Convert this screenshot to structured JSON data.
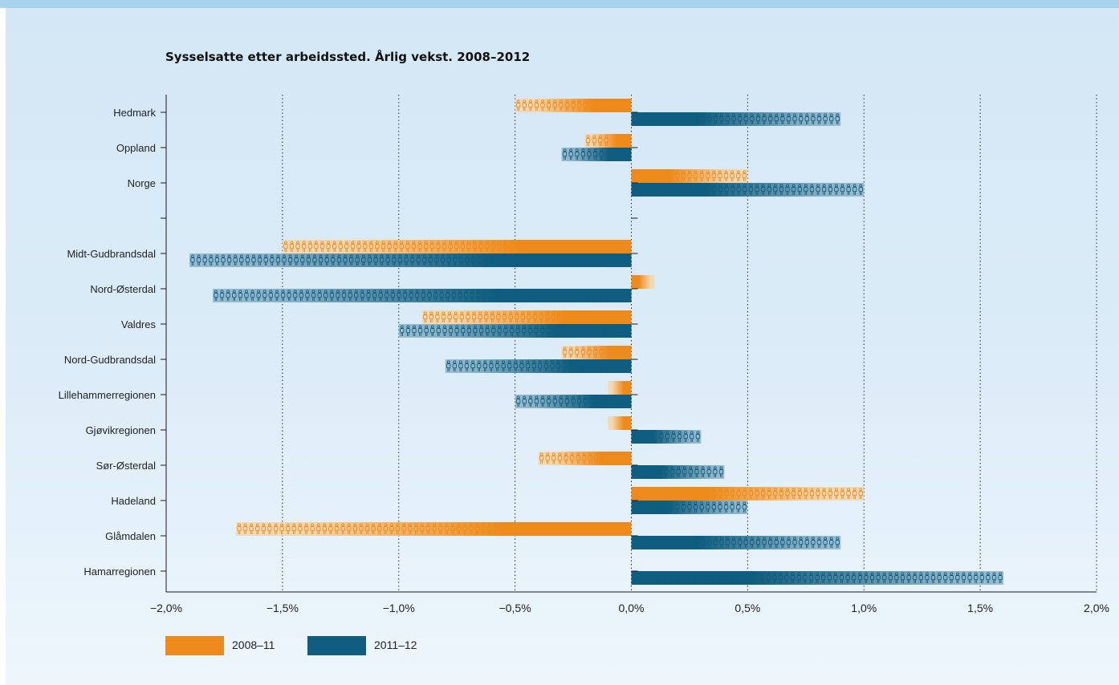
{
  "chart_data": {
    "type": "bar",
    "orientation": "horizontal",
    "title": "Sysselsatte etter arbeidssted. Årlig vekst. 2008–2012",
    "xlabel": "",
    "ylabel": "",
    "categories": [
      "Hedmark",
      "Oppland",
      "Norge",
      "",
      "Midt-Gudbrandsdal",
      "Nord-Østerdal",
      "Valdres",
      "Nord-Gudbrandsdal",
      "Lillehammerregionen",
      "Gjøvikregionen",
      "Sør-Østerdal",
      "Hadeland",
      "Glåmdalen",
      "Hamarregionen"
    ],
    "series": [
      {
        "name": "2008–11",
        "color": "#ee8a1a",
        "values": [
          -0.5,
          -0.2,
          0.5,
          null,
          -1.5,
          0.1,
          -0.9,
          -0.3,
          -0.1,
          -0.1,
          -0.4,
          1.0,
          -1.7,
          0.0
        ]
      },
      {
        "name": "2011–12",
        "color": "#0f5d80",
        "values": [
          0.9,
          -0.3,
          1.0,
          null,
          -1.9,
          -1.8,
          -1.0,
          -0.8,
          -0.5,
          0.3,
          0.4,
          0.5,
          0.9,
          1.6
        ]
      }
    ],
    "xlim": [
      -2.0,
      2.0
    ],
    "xticks": [
      -2.0,
      -1.5,
      -1.0,
      -0.5,
      0.0,
      0.5,
      1.0,
      1.5,
      2.0
    ],
    "xtick_labels": [
      "−2,0%",
      "−1,5%",
      "−1,0%",
      "−0,5%",
      "0,0%",
      "0,5%",
      "1,0%",
      "1,5%",
      "2,0%"
    ],
    "grid": "vertical dotted",
    "legend_position": "bottom-left",
    "icon": "person-icon"
  }
}
